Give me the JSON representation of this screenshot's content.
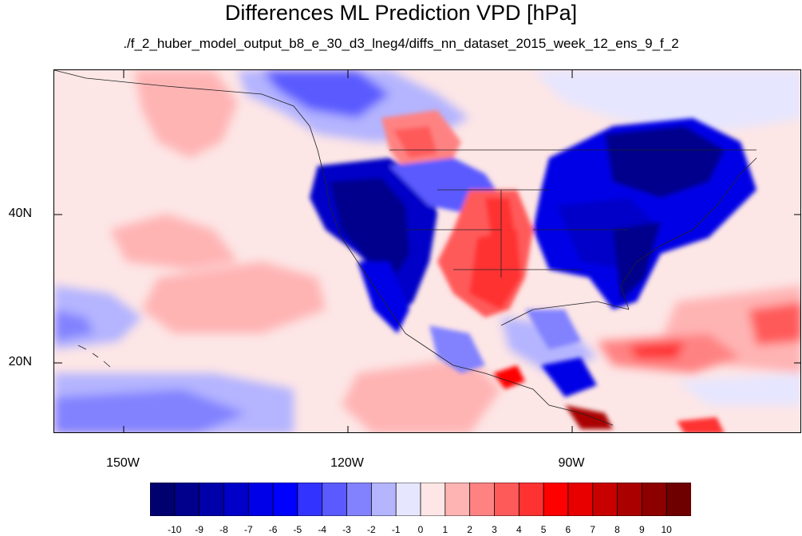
{
  "title": "Differences ML Prediction VPD [hPa]",
  "subtitle": "./f_2_huber_model_output_b8_e_30_d3_lneg4/diffs_nn_dataset_2015_week_12_ens_9_f_2",
  "map": {
    "lat_labels": [
      "40N",
      "20N"
    ],
    "lon_labels": [
      "150W",
      "120W",
      "90W"
    ],
    "extent": {
      "lon_min": -159,
      "lon_max": -59,
      "lat_min": 10,
      "lat_max": 59
    }
  },
  "colorbar": {
    "labels": [
      "-10",
      "-9",
      "-8",
      "-7",
      "-6",
      "-5",
      "-4",
      "-3",
      "-2",
      "-1",
      "0",
      "1",
      "2",
      "3",
      "4",
      "5",
      "6",
      "7",
      "8",
      "9",
      "10"
    ],
    "colors": [
      "#00006e",
      "#00008c",
      "#0000aa",
      "#0000c8",
      "#0000e6",
      "#0000ff",
      "#3333ff",
      "#5a5aff",
      "#8282ff",
      "#b4b4ff",
      "#e6e6ff",
      "#ffe6e6",
      "#ffb4b4",
      "#ff8282",
      "#ff5a5a",
      "#ff3232",
      "#ff0000",
      "#e60000",
      "#c80000",
      "#aa0000",
      "#8c0000",
      "#6e0000"
    ]
  }
}
